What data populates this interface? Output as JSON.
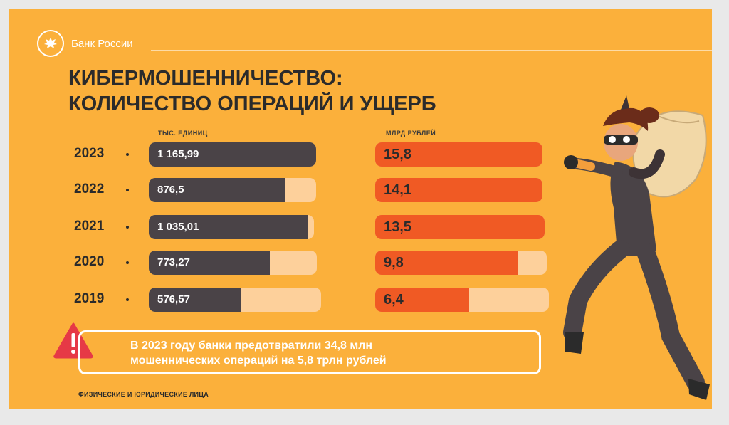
{
  "header": {
    "logo_text": "Банк России"
  },
  "title": {
    "line1": "КИБЕРМОШЕННИЧЕСТВО:",
    "line2": "КОЛИЧЕСТВО ОПЕРАЦИЙ И УЩЕРБ"
  },
  "chart_data": {
    "type": "bar",
    "categories": [
      "2023",
      "2022",
      "2021",
      "2020",
      "2019"
    ],
    "series": [
      {
        "name": "ТЫС. ЕДИНИЦ",
        "values": [
          1165.99,
          876.5,
          1035.01,
          773.27,
          576.57
        ],
        "labels": [
          "1 165,99",
          "876,5",
          "1 035,01",
          "773,27",
          "576,57"
        ],
        "max": 3000
      },
      {
        "name": "МЛРД РУБЛЕЙ",
        "values": [
          15.8,
          14.1,
          13.5,
          9.8,
          6.4
        ],
        "labels": [
          "15,8",
          "14,1",
          "13,5",
          "9,8",
          "6,4"
        ],
        "max": 33
      }
    ]
  },
  "callout": {
    "line1": "В 2023 году банки предотвратили 34,8 млн",
    "line2": "мошеннических операций на 5,8 трлн рублей"
  },
  "footnote": "ФИЗИЧЕСКИЕ И ЮРИДИЧЕСКИЕ ЛИЦА",
  "colors": {
    "background": "#fbb03b",
    "left_bar": "#4a4347",
    "right_bar": "#f05a24",
    "bar_track": "#fdd09b"
  }
}
